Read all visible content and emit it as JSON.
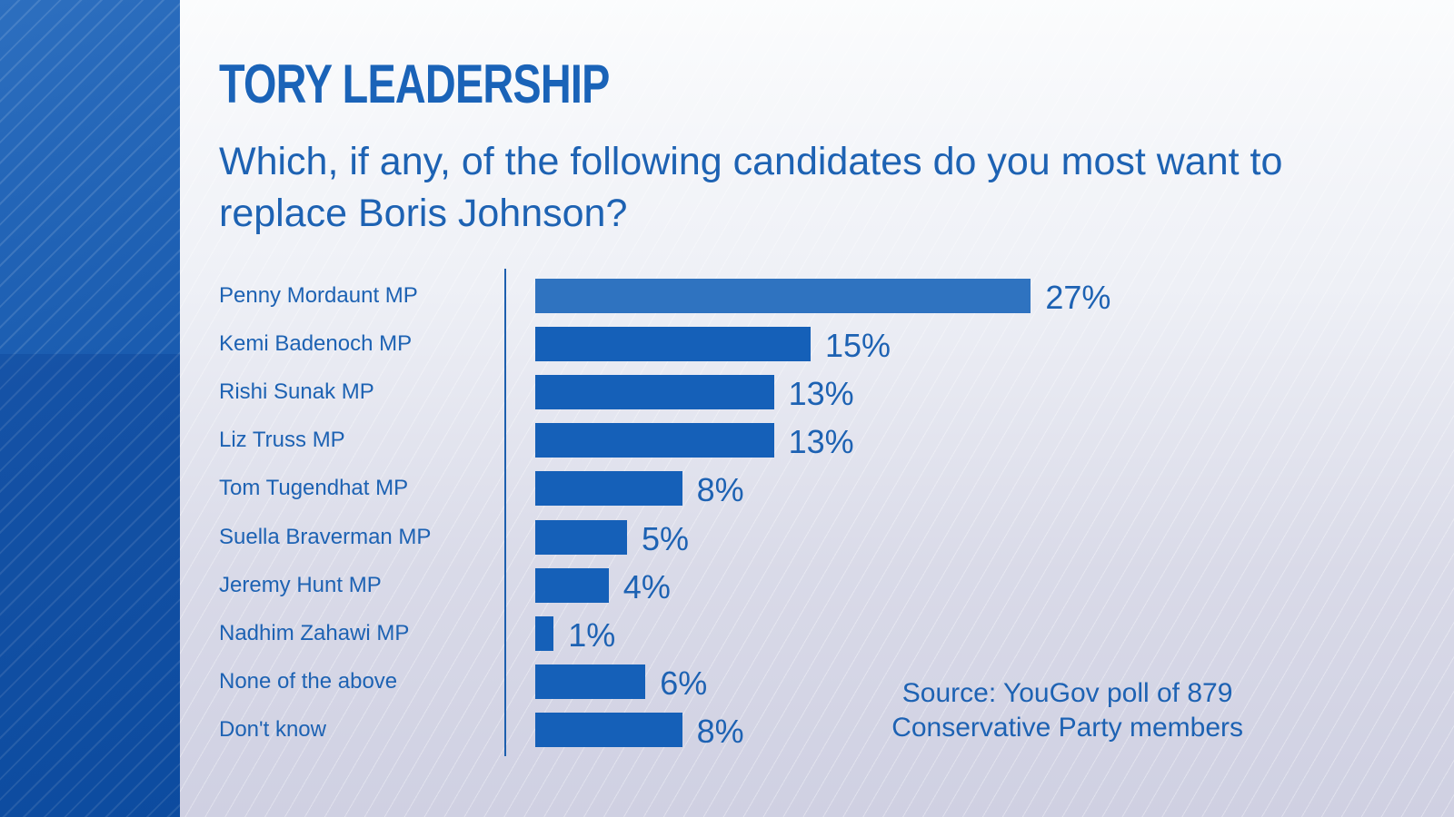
{
  "title": "TORY LEADERSHIP",
  "question": "Which, if any, of the following candidates do you most want to replace Boris Johnson?",
  "source_line1": "Source: YouGov poll of 879",
  "source_line2": "Conservative Party members",
  "colors": {
    "bar": "#1560b8",
    "text": "#1d62b3",
    "sidebar": "#1a5cb0"
  },
  "chart_data": {
    "type": "bar",
    "orientation": "horizontal",
    "title": "Which, if any, of the following candidates do you most want to replace Boris Johnson?",
    "categories": [
      "Penny Mordaunt MP",
      "Kemi Badenoch MP",
      "Rishi Sunak MP",
      "Liz Truss MP",
      "Tom Tugendhat MP",
      "Suella Braverman MP",
      "Jeremy Hunt MP",
      "Nadhim Zahawi MP",
      "None of the above",
      "Don't know"
    ],
    "values": [
      27,
      15,
      13,
      13,
      8,
      5,
      4,
      1,
      6,
      8
    ],
    "value_labels": [
      "27%",
      "15%",
      "13%",
      "13%",
      "8%",
      "5%",
      "4%",
      "1%",
      "6%",
      "8%"
    ],
    "unit": "%",
    "grid": false,
    "legend": "none"
  }
}
